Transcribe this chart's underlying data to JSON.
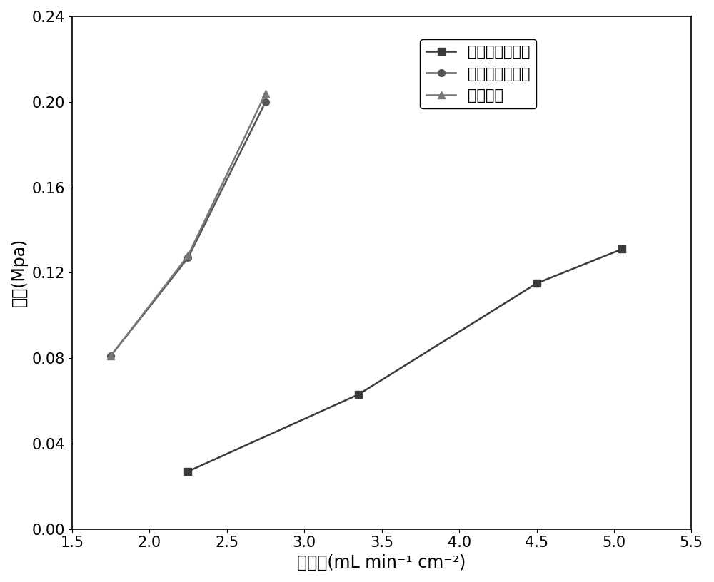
{
  "series": [
    {
      "label": "二分叉指型流道",
      "x": [
        2.25,
        3.35,
        4.5,
        5.05
      ],
      "y": [
        0.027,
        0.063,
        0.115,
        0.131
      ],
      "marker": "s",
      "color": "#3a3a3a",
      "linewidth": 1.8,
      "markersize": 7
    },
    {
      "label": "传统叉指型流道",
      "x": [
        1.75,
        2.25,
        2.75
      ],
      "y": [
        0.081,
        0.127,
        0.2
      ],
      "marker": "o",
      "color": "#555555",
      "linewidth": 1.8,
      "markersize": 7
    },
    {
      "label": "蛇形流道",
      "x": [
        1.75,
        2.25,
        2.75
      ],
      "y": [
        0.081,
        0.128,
        0.204
      ],
      "marker": "^",
      "color": "#777777",
      "linewidth": 1.8,
      "markersize": 7
    }
  ],
  "xlabel": "比流量(mL min⁻¹ cm⁻²)",
  "ylabel": "压降(Mpa)",
  "xlim": [
    1.5,
    5.5
  ],
  "ylim": [
    0.0,
    0.24
  ],
  "xticks": [
    1.5,
    2.0,
    2.5,
    3.0,
    3.5,
    4.0,
    4.5,
    5.0,
    5.5
  ],
  "yticks": [
    0.0,
    0.04,
    0.08,
    0.12,
    0.16,
    0.2,
    0.24
  ],
  "label_fontsize": 17,
  "tick_fontsize": 15,
  "legend_fontsize": 15,
  "background_color": "#ffffff"
}
